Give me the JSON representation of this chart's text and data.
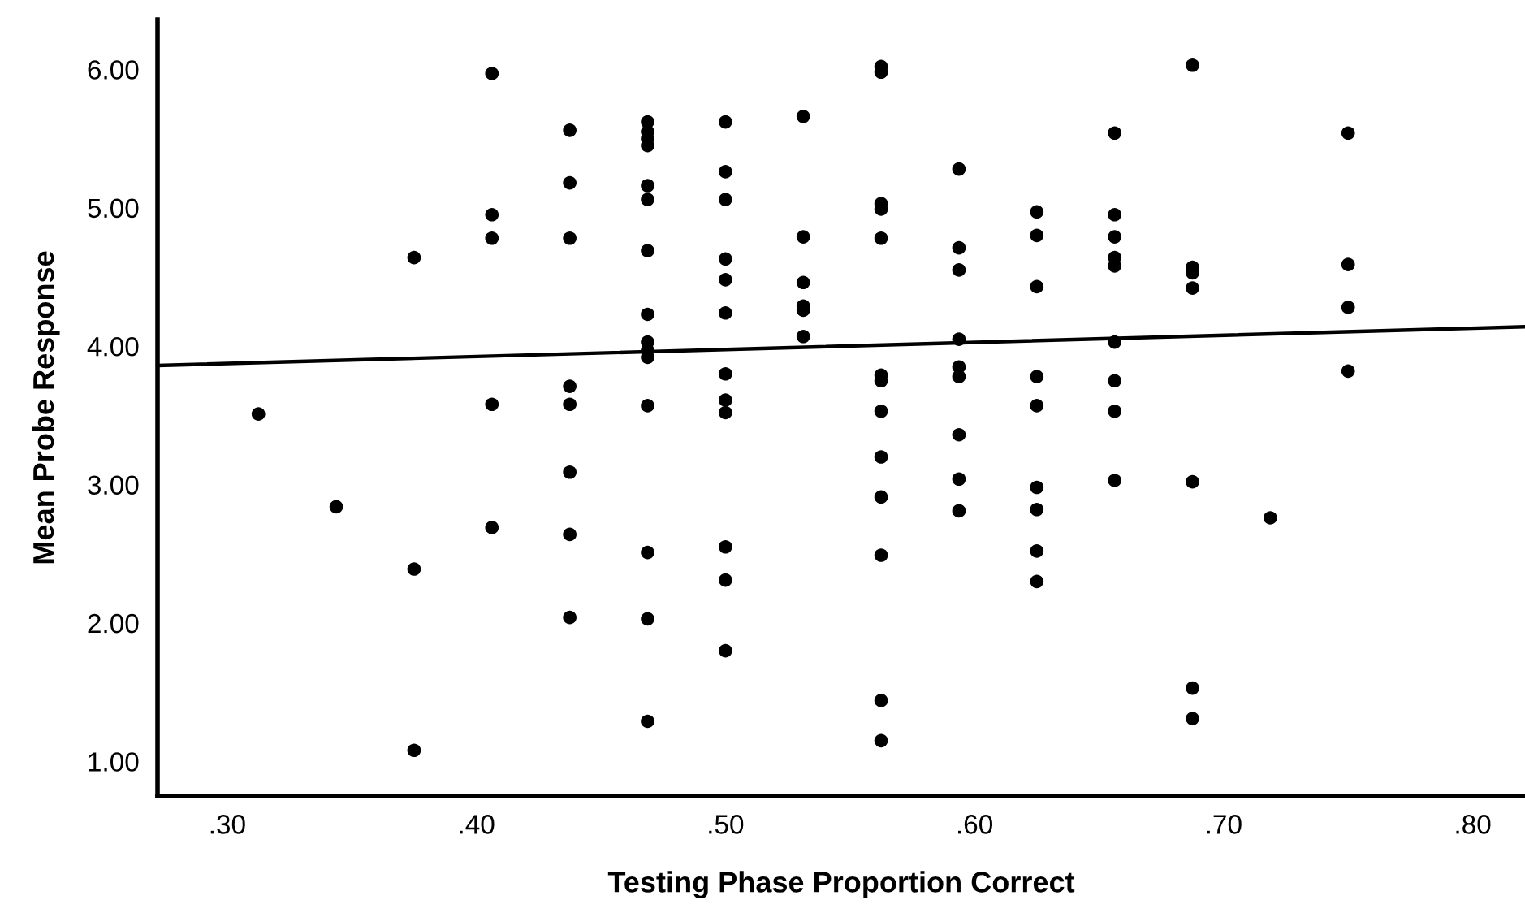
{
  "chart_data": {
    "type": "scatter",
    "xlabel": "Testing Phase Proportion Correct",
    "ylabel": "Mean Probe Response",
    "xlim": [
      0.272,
      0.821
    ],
    "ylim": [
      0.75,
      6.36
    ],
    "xticks": [
      {
        "value": 0.3,
        "label": ".30"
      },
      {
        "value": 0.4,
        "label": ".40"
      },
      {
        "value": 0.5,
        "label": ".50"
      },
      {
        "value": 0.6,
        "label": ".60"
      },
      {
        "value": 0.7,
        "label": ".70"
      },
      {
        "value": 0.8,
        "label": ".80"
      }
    ],
    "yticks": [
      {
        "value": 1,
        "label": "1.00"
      },
      {
        "value": 2,
        "label": "2.00"
      },
      {
        "value": 3,
        "label": "3.00"
      },
      {
        "value": 4,
        "label": "4.00"
      },
      {
        "value": 5,
        "label": "5.00"
      },
      {
        "value": 6,
        "label": "6.00"
      }
    ],
    "grid": false,
    "series": [
      {
        "marker": "circle",
        "color": "#000000",
        "x": [
          0.3125,
          0.34375,
          0.375,
          0.375,
          0.375,
          0.40625,
          0.40625,
          0.40625,
          0.40625,
          0.40625,
          0.4375,
          0.4375,
          0.4375,
          0.4375,
          0.4375,
          0.4375,
          0.4375,
          0.4375,
          0.46875,
          0.46875,
          0.46875,
          0.46875,
          0.46875,
          0.46875,
          0.46875,
          0.46875,
          0.46875,
          0.46875,
          0.46875,
          0.46875,
          0.46875,
          0.46875,
          0.46875,
          0.5,
          0.5,
          0.5,
          0.5,
          0.5,
          0.5,
          0.5,
          0.5,
          0.5,
          0.5,
          0.5,
          0.5,
          0.53125,
          0.53125,
          0.53125,
          0.53125,
          0.53125,
          0.53125,
          0.5625,
          0.5625,
          0.5625,
          0.5625,
          0.5625,
          0.5625,
          0.5625,
          0.5625,
          0.5625,
          0.5625,
          0.5625,
          0.5625,
          0.5625,
          0.59375,
          0.59375,
          0.59375,
          0.59375,
          0.59375,
          0.59375,
          0.59375,
          0.59375,
          0.59375,
          0.625,
          0.625,
          0.625,
          0.625,
          0.625,
          0.625,
          0.625,
          0.625,
          0.625,
          0.65625,
          0.65625,
          0.65625,
          0.65625,
          0.65625,
          0.65625,
          0.65625,
          0.65625,
          0.65625,
          0.6875,
          0.6875,
          0.6875,
          0.6875,
          0.6875,
          0.6875,
          0.6875,
          0.71875,
          0.75,
          0.75,
          0.75,
          0.75
        ],
        "values": [
          3.51,
          2.84,
          4.64,
          2.39,
          1.08,
          5.97,
          4.95,
          4.78,
          3.58,
          2.69,
          5.56,
          5.18,
          4.78,
          3.71,
          3.58,
          3.09,
          2.64,
          2.04,
          5.62,
          5.55,
          5.5,
          5.45,
          5.16,
          5.06,
          4.69,
          4.23,
          4.03,
          3.97,
          3.92,
          3.57,
          2.51,
          2.03,
          1.29,
          5.62,
          5.26,
          5.06,
          4.63,
          4.48,
          4.24,
          3.8,
          3.61,
          3.52,
          2.55,
          2.31,
          1.8,
          5.66,
          4.79,
          4.46,
          4.29,
          4.26,
          4.07,
          6.02,
          5.98,
          5.03,
          4.99,
          4.78,
          3.79,
          3.75,
          3.53,
          3.2,
          2.91,
          2.49,
          1.44,
          1.15,
          5.28,
          4.71,
          4.55,
          4.05,
          3.85,
          3.78,
          3.36,
          3.04,
          2.81,
          4.97,
          4.8,
          4.43,
          3.78,
          3.57,
          2.98,
          2.82,
          2.52,
          2.3,
          5.54,
          4.95,
          4.79,
          4.64,
          4.58,
          4.03,
          3.75,
          3.53,
          3.03,
          6.03,
          4.57,
          4.53,
          4.42,
          3.02,
          1.53,
          1.31,
          2.76,
          5.54,
          4.59,
          4.28,
          3.82
        ]
      },
      {
        "type": "line",
        "marker": "none",
        "color": "#000000",
        "x": [
          0.272,
          0.821
        ],
        "values": [
          3.86,
          4.14
        ]
      }
    ]
  }
}
